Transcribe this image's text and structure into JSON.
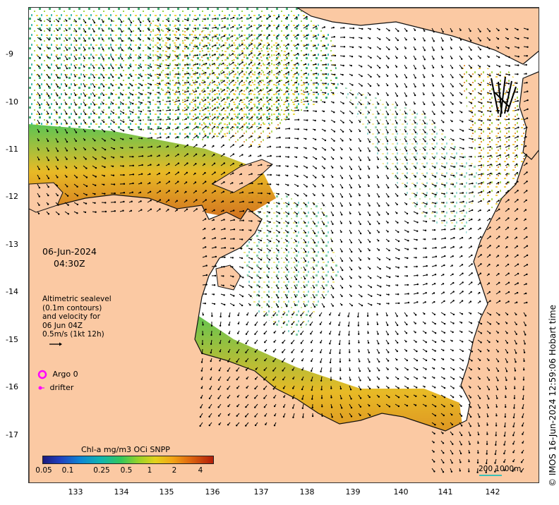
{
  "map": {
    "lat_labels": [
      "-9",
      "-10",
      "-11",
      "-12",
      "-13",
      "-14",
      "-15",
      "-16",
      "-17"
    ],
    "lon_labels": [
      "133",
      "134",
      "135",
      "136",
      "137",
      "138",
      "139",
      "140",
      "141",
      "142"
    ],
    "colors": {
      "land": "#fbc9a3",
      "ocean_no_data": "#ffffff",
      "coastline": "#111111",
      "vector": "#000000"
    }
  },
  "overlay": {
    "date": "06-Jun-2024",
    "time": "04:30Z",
    "info_lines": [
      "Altimetric sealevel",
      "(0.1m contours)",
      "and velocity for",
      "06 Jun 04Z",
      "0.5m/s (1kt 12h)"
    ]
  },
  "legend": {
    "argo_label": "Argo 0",
    "argo_color": "#ff00ff",
    "drifter_label": "drifter",
    "drifter_color": "#ff00ff"
  },
  "colorbar": {
    "title": "Chl-a mg/m3 OCi SNPP",
    "ticks": [
      "0.05",
      "0.1",
      "0.25",
      "0.5",
      "1",
      "2",
      "4"
    ]
  },
  "scale": {
    "label": "200  1000m"
  },
  "credit": "© IMOS 16-Jun-2024 12:59:06 Hobart time"
}
